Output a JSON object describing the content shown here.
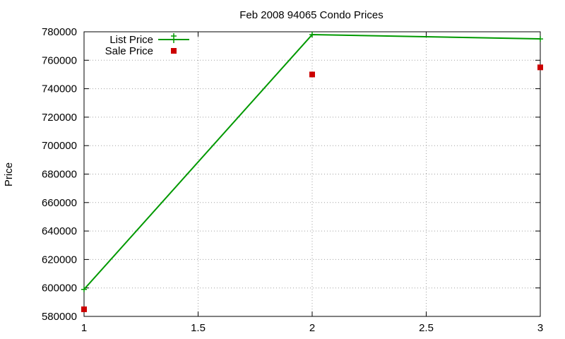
{
  "chart_data": {
    "type": "line",
    "title": "Feb 2008 94065 Condo Prices",
    "xlabel": "",
    "ylabel": "Price",
    "xlim": [
      1,
      3
    ],
    "ylim": [
      580000,
      780000
    ],
    "x_ticks": [
      "1",
      "1.5",
      "2",
      "2.5",
      "3"
    ],
    "y_ticks": [
      "580000",
      "600000",
      "620000",
      "640000",
      "660000",
      "680000",
      "700000",
      "720000",
      "740000",
      "760000",
      "780000"
    ],
    "grid": true,
    "legend_position": "top-left",
    "series": [
      {
        "name": "List Price",
        "style": "linespoints",
        "color": "#009900",
        "x": [
          1,
          2,
          3
        ],
        "y": [
          599000,
          778000,
          775000
        ]
      },
      {
        "name": "Sale Price",
        "style": "points",
        "color": "#cc0000",
        "x": [
          1,
          2,
          3
        ],
        "y": [
          585000,
          750000,
          755000
        ]
      }
    ]
  }
}
